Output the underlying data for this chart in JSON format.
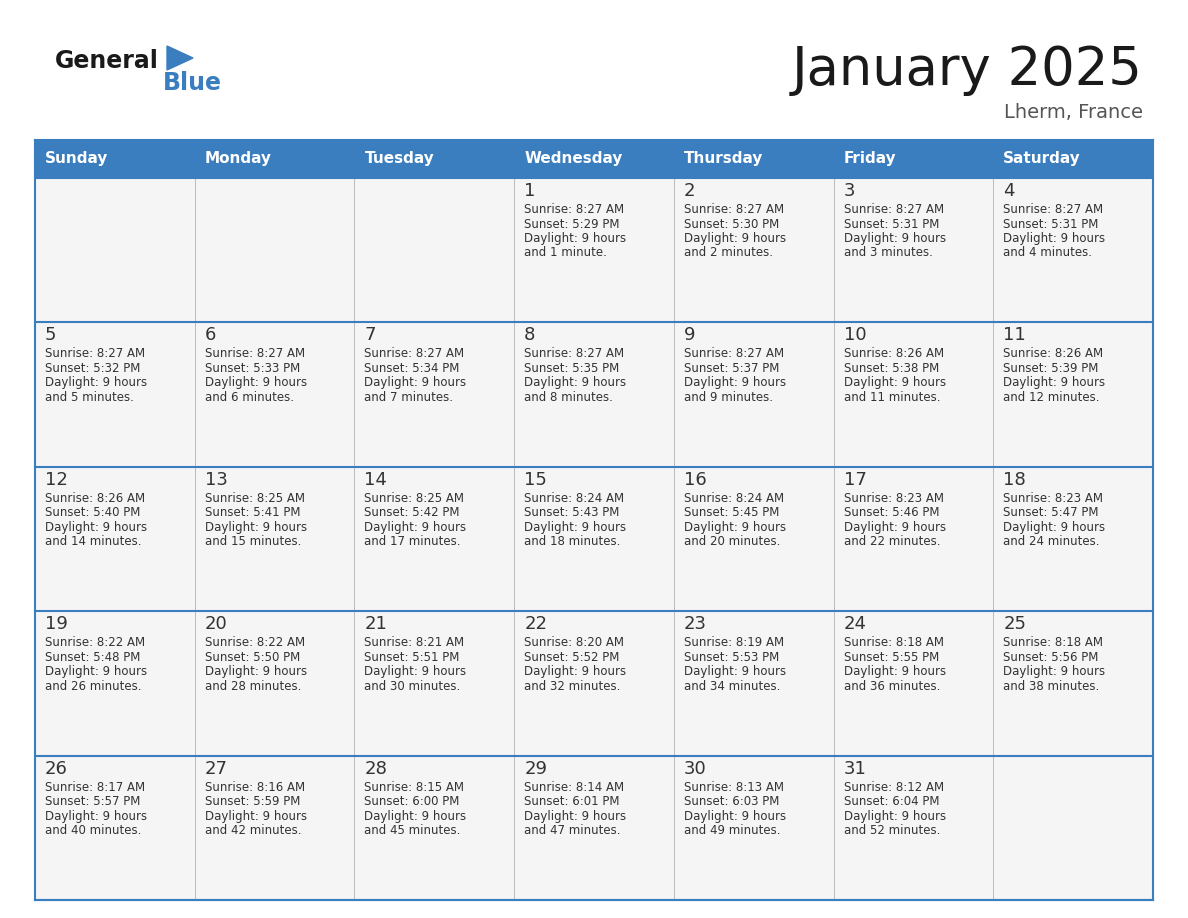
{
  "title": "January 2025",
  "subtitle": "Lherm, France",
  "header_bg": "#3a7ebf",
  "header_text": "#ffffff",
  "cell_bg": "#f5f5f5",
  "cell_text": "#333333",
  "border_color": "#3a7ebf",
  "grid_line_color": "#3a7ebf",
  "days_of_week": [
    "Sunday",
    "Monday",
    "Tuesday",
    "Wednesday",
    "Thursday",
    "Friday",
    "Saturday"
  ],
  "calendar": [
    [
      null,
      null,
      null,
      {
        "day": 1,
        "sunrise": "8:27 AM",
        "sunset": "5:29 PM",
        "daylight": "9 hours and 1 minute."
      },
      {
        "day": 2,
        "sunrise": "8:27 AM",
        "sunset": "5:30 PM",
        "daylight": "9 hours and 2 minutes."
      },
      {
        "day": 3,
        "sunrise": "8:27 AM",
        "sunset": "5:31 PM",
        "daylight": "9 hours and 3 minutes."
      },
      {
        "day": 4,
        "sunrise": "8:27 AM",
        "sunset": "5:31 PM",
        "daylight": "9 hours and 4 minutes."
      }
    ],
    [
      {
        "day": 5,
        "sunrise": "8:27 AM",
        "sunset": "5:32 PM",
        "daylight": "9 hours and 5 minutes."
      },
      {
        "day": 6,
        "sunrise": "8:27 AM",
        "sunset": "5:33 PM",
        "daylight": "9 hours and 6 minutes."
      },
      {
        "day": 7,
        "sunrise": "8:27 AM",
        "sunset": "5:34 PM",
        "daylight": "9 hours and 7 minutes."
      },
      {
        "day": 8,
        "sunrise": "8:27 AM",
        "sunset": "5:35 PM",
        "daylight": "9 hours and 8 minutes."
      },
      {
        "day": 9,
        "sunrise": "8:27 AM",
        "sunset": "5:37 PM",
        "daylight": "9 hours and 9 minutes."
      },
      {
        "day": 10,
        "sunrise": "8:26 AM",
        "sunset": "5:38 PM",
        "daylight": "9 hours and 11 minutes."
      },
      {
        "day": 11,
        "sunrise": "8:26 AM",
        "sunset": "5:39 PM",
        "daylight": "9 hours and 12 minutes."
      }
    ],
    [
      {
        "day": 12,
        "sunrise": "8:26 AM",
        "sunset": "5:40 PM",
        "daylight": "9 hours and 14 minutes."
      },
      {
        "day": 13,
        "sunrise": "8:25 AM",
        "sunset": "5:41 PM",
        "daylight": "9 hours and 15 minutes."
      },
      {
        "day": 14,
        "sunrise": "8:25 AM",
        "sunset": "5:42 PM",
        "daylight": "9 hours and 17 minutes."
      },
      {
        "day": 15,
        "sunrise": "8:24 AM",
        "sunset": "5:43 PM",
        "daylight": "9 hours and 18 minutes."
      },
      {
        "day": 16,
        "sunrise": "8:24 AM",
        "sunset": "5:45 PM",
        "daylight": "9 hours and 20 minutes."
      },
      {
        "day": 17,
        "sunrise": "8:23 AM",
        "sunset": "5:46 PM",
        "daylight": "9 hours and 22 minutes."
      },
      {
        "day": 18,
        "sunrise": "8:23 AM",
        "sunset": "5:47 PM",
        "daylight": "9 hours and 24 minutes."
      }
    ],
    [
      {
        "day": 19,
        "sunrise": "8:22 AM",
        "sunset": "5:48 PM",
        "daylight": "9 hours and 26 minutes."
      },
      {
        "day": 20,
        "sunrise": "8:22 AM",
        "sunset": "5:50 PM",
        "daylight": "9 hours and 28 minutes."
      },
      {
        "day": 21,
        "sunrise": "8:21 AM",
        "sunset": "5:51 PM",
        "daylight": "9 hours and 30 minutes."
      },
      {
        "day": 22,
        "sunrise": "8:20 AM",
        "sunset": "5:52 PM",
        "daylight": "9 hours and 32 minutes."
      },
      {
        "day": 23,
        "sunrise": "8:19 AM",
        "sunset": "5:53 PM",
        "daylight": "9 hours and 34 minutes."
      },
      {
        "day": 24,
        "sunrise": "8:18 AM",
        "sunset": "5:55 PM",
        "daylight": "9 hours and 36 minutes."
      },
      {
        "day": 25,
        "sunrise": "8:18 AM",
        "sunset": "5:56 PM",
        "daylight": "9 hours and 38 minutes."
      }
    ],
    [
      {
        "day": 26,
        "sunrise": "8:17 AM",
        "sunset": "5:57 PM",
        "daylight": "9 hours and 40 minutes."
      },
      {
        "day": 27,
        "sunrise": "8:16 AM",
        "sunset": "5:59 PM",
        "daylight": "9 hours and 42 minutes."
      },
      {
        "day": 28,
        "sunrise": "8:15 AM",
        "sunset": "6:00 PM",
        "daylight": "9 hours and 45 minutes."
      },
      {
        "day": 29,
        "sunrise": "8:14 AM",
        "sunset": "6:01 PM",
        "daylight": "9 hours and 47 minutes."
      },
      {
        "day": 30,
        "sunrise": "8:13 AM",
        "sunset": "6:03 PM",
        "daylight": "9 hours and 49 minutes."
      },
      {
        "day": 31,
        "sunrise": "8:12 AM",
        "sunset": "6:04 PM",
        "daylight": "9 hours and 52 minutes."
      },
      null
    ]
  ],
  "logo_text_general": "General",
  "logo_text_blue": "Blue",
  "logo_color_general": "#1a1a1a",
  "logo_color_blue": "#3a7ebf",
  "title_fontsize": 38,
  "subtitle_fontsize": 14,
  "header_fontsize": 11,
  "day_num_fontsize": 13,
  "cell_text_fontsize": 8.5
}
